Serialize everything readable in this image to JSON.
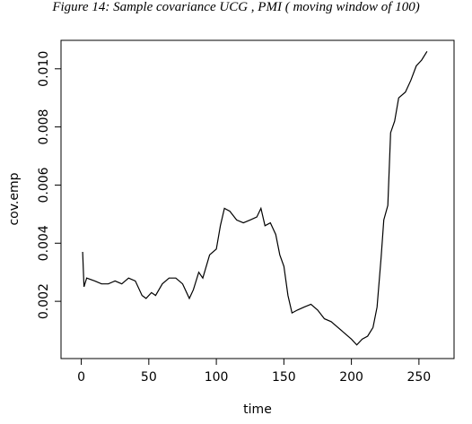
{
  "chart_data": {
    "type": "line",
    "title": "Figure 14: Sample covariance UCG , PMI ( moving window of 100)",
    "xlabel": "time",
    "ylabel": "cov.emp",
    "x": [
      1,
      2,
      4,
      10,
      15,
      20,
      25,
      30,
      35,
      40,
      45,
      48,
      52,
      55,
      60,
      65,
      70,
      75,
      80,
      83,
      87,
      90,
      95,
      100,
      103,
      106,
      110,
      115,
      120,
      125,
      130,
      133,
      136,
      140,
      144,
      147,
      150,
      153,
      156,
      160,
      165,
      170,
      175,
      180,
      185,
      190,
      195,
      200,
      204,
      208,
      212,
      216,
      219,
      222,
      224,
      227,
      229,
      232,
      235,
      240,
      244,
      248,
      252,
      256
    ],
    "series": [
      {
        "name": "cov.emp",
        "color": "#000000",
        "values": [
          0.0037,
          0.0025,
          0.0028,
          0.0027,
          0.0026,
          0.0026,
          0.0027,
          0.0026,
          0.0028,
          0.0027,
          0.0022,
          0.0021,
          0.0023,
          0.0022,
          0.0026,
          0.0028,
          0.0028,
          0.0026,
          0.0021,
          0.0024,
          0.003,
          0.0028,
          0.0036,
          0.0038,
          0.0046,
          0.0052,
          0.0051,
          0.0048,
          0.0047,
          0.0048,
          0.0049,
          0.0052,
          0.0046,
          0.0047,
          0.0043,
          0.0036,
          0.0032,
          0.0022,
          0.0016,
          0.0017,
          0.0018,
          0.0019,
          0.0017,
          0.0014,
          0.0013,
          0.0011,
          0.0009,
          0.0007,
          0.0005,
          0.0007,
          0.0008,
          0.0011,
          0.0018,
          0.0035,
          0.0048,
          0.0053,
          0.0078,
          0.0082,
          0.009,
          0.0092,
          0.0096,
          0.0101,
          0.0103,
          0.0106
        ]
      }
    ],
    "xlim": [
      -15,
      276
    ],
    "xticks": [
      0,
      50,
      100,
      150,
      200,
      250
    ],
    "ylim": [
      3e-05,
      0.01098
    ],
    "yticks": [
      0.002,
      0.004,
      0.006,
      0.008,
      {
        "value": 0.01,
        "label": "0.010"
      }
    ]
  }
}
